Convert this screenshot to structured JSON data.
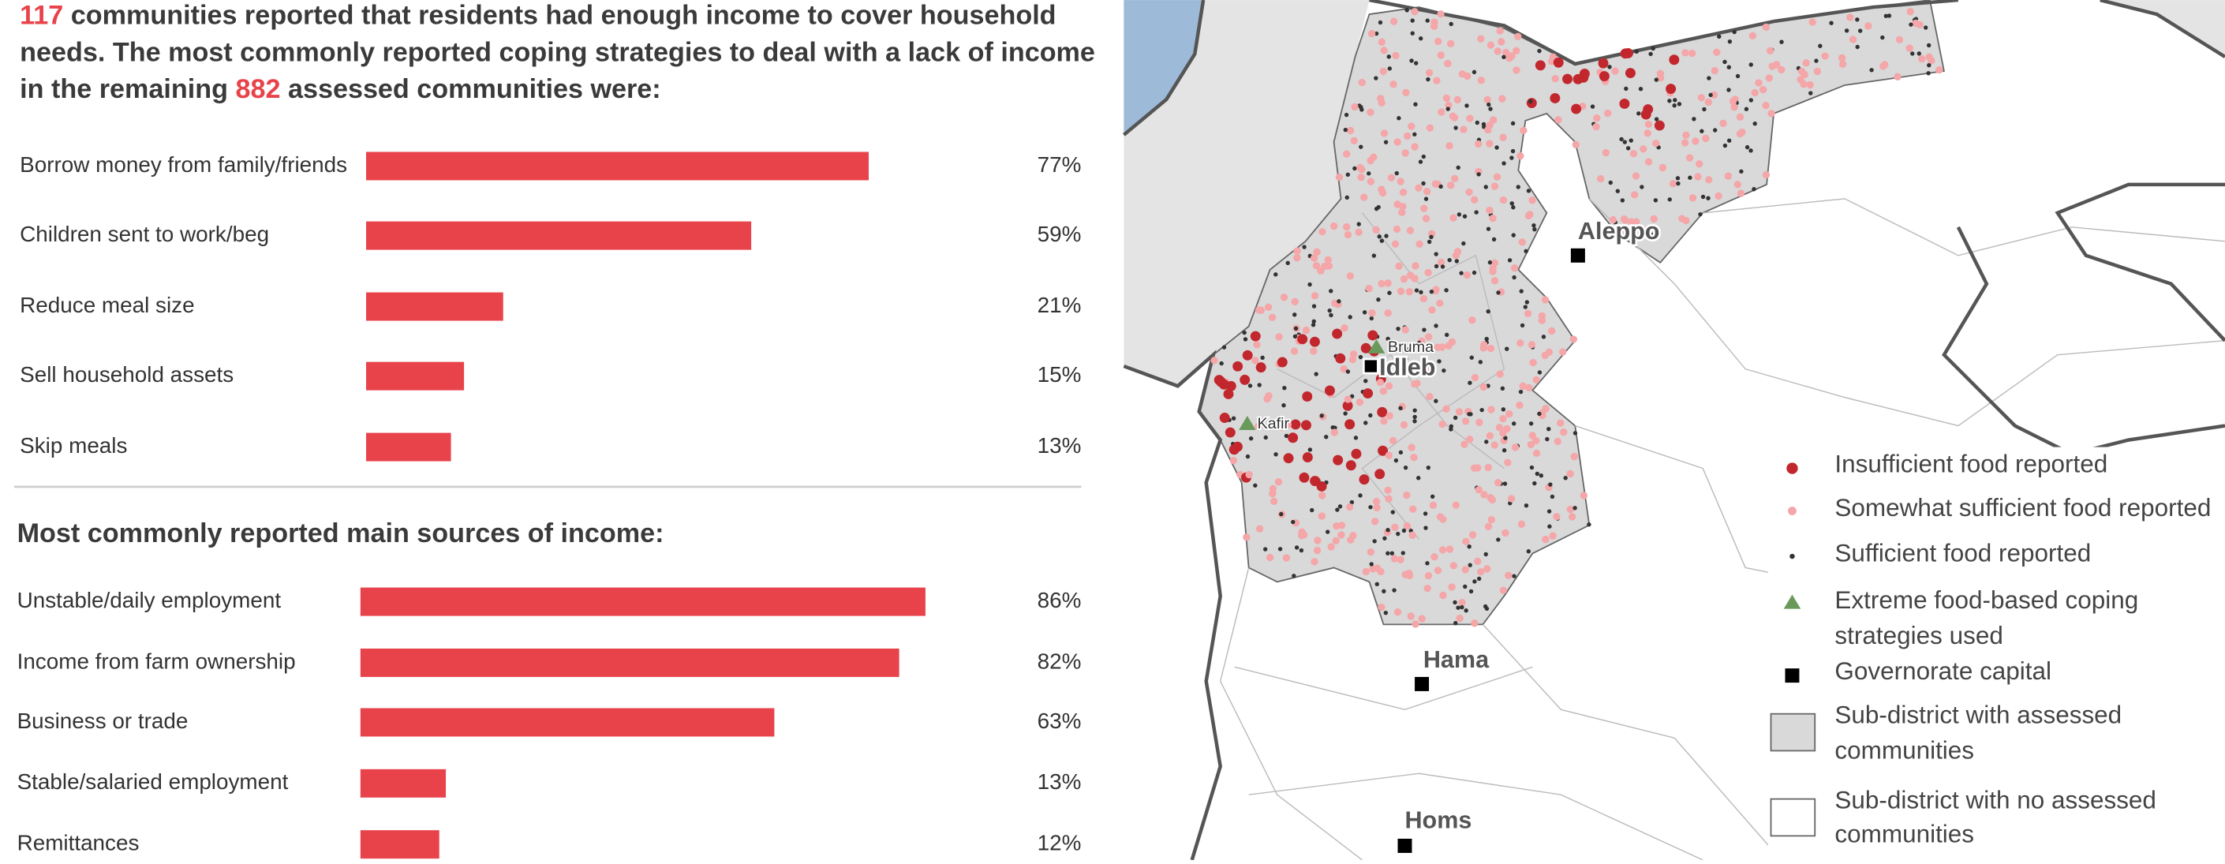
{
  "intro": {
    "count_sufficient": "117",
    "line1_end": " communities reported that residents had enough income to cover household",
    "line2": "needs. The most commonly reported coping strategies to deal with a lack of income",
    "line3_start": "in the remaining ",
    "count_assessed": "882",
    "line3_end": " assessed communities were:"
  },
  "chart_data": [
    {
      "type": "bar",
      "orientation": "horizontal",
      "color": "#e8434a",
      "xlim": [
        0,
        100
      ],
      "categories": [
        "Borrow money from family/friends",
        "Children sent to work/beg",
        "Reduce meal size",
        "Sell household assets",
        "Skip meals"
      ],
      "values": [
        77,
        59,
        21,
        15,
        13
      ],
      "value_labels": [
        "77%",
        "59%",
        "21%",
        "15%",
        "13%"
      ]
    },
    {
      "type": "bar",
      "orientation": "horizontal",
      "color": "#e8434a",
      "xlim": [
        0,
        100
      ],
      "title": "Most commonly reported main sources of income:",
      "categories": [
        "Unstable/daily employment",
        "Income from farm ownership",
        "Business or trade",
        "Stable/salaried employment",
        "Remittances"
      ],
      "values": [
        86,
        82,
        63,
        13,
        12
      ],
      "value_labels": [
        "86%",
        "82%",
        "63%",
        "13%",
        "12%"
      ]
    }
  ],
  "map": {
    "places": [
      "Aleppo",
      "Idleb",
      "Hama",
      "Homs",
      "Bruma",
      "Kafir"
    ],
    "legend": [
      [
        "Insufficient food reported"
      ],
      [
        "Somewhat sufficient food reported"
      ],
      [
        "Sufficient food reported"
      ],
      [
        "Extreme food-based coping",
        "strategies used"
      ],
      [
        "Governorate capital"
      ],
      [
        "Sub-district with assessed",
        "communities"
      ],
      [
        "Sub-district with no assessed",
        "communities"
      ]
    ]
  }
}
